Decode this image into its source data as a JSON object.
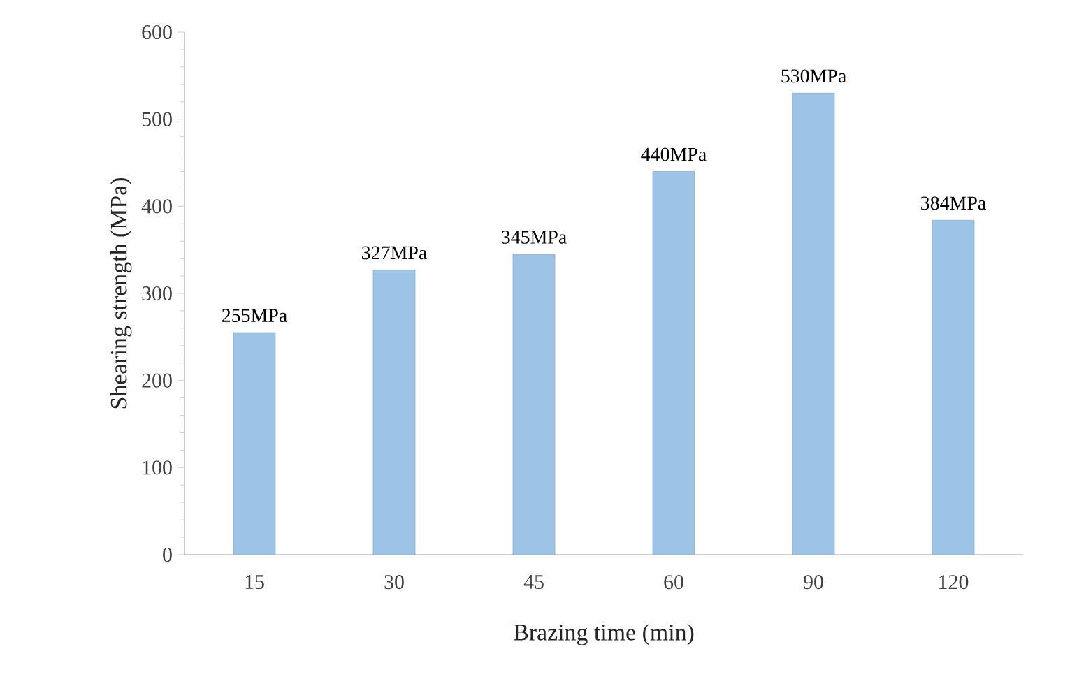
{
  "chart_data": {
    "type": "bar",
    "xlabel": "Brazing time (min)",
    "ylabel": "Shearing strength (MPa)",
    "categories": [
      "15",
      "30",
      "45",
      "60",
      "90",
      "120"
    ],
    "values": [
      255,
      327,
      345,
      440,
      530,
      384
    ],
    "value_labels": [
      "255MPa",
      "327MPa",
      "345MPa",
      "440MPa",
      "530MPa",
      "384MPa"
    ],
    "color": "#9dc3e6",
    "ylim": [
      0,
      600
    ],
    "yticks": [
      0,
      100,
      200,
      300,
      400,
      500,
      600
    ]
  }
}
